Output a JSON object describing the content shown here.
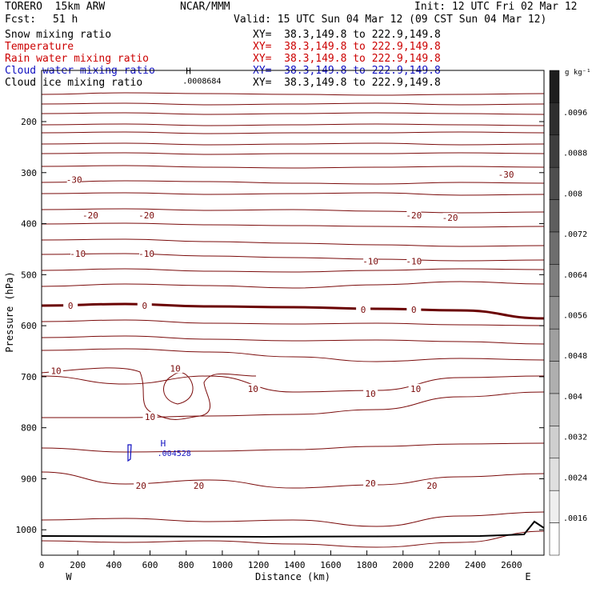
{
  "header": {
    "model": "TORERO  15km ARW",
    "center": "NCAR/MMM",
    "init": "Init: 12 UTC Fri 02 Mar 12",
    "fcst_label": "Fcst:",
    "fcst_value": "51 h",
    "valid": "Valid: 15 UTC Sun 04 Mar 12 (09 CST Sun 04 Mar 12)"
  },
  "legend": [
    {
      "field": "Snow mixing ratio",
      "xy": "XY=  38.3,149.8 to 222.9,149.8",
      "color": "#000000"
    },
    {
      "field": "Temperature",
      "xy": "XY=  38.3,149.8 to 222.9,149.8",
      "color": "#cc0000"
    },
    {
      "field": "Rain water mixing ratio",
      "xy": "XY=  38.3,149.8 to 222.9,149.8",
      "color": "#cc0000"
    },
    {
      "field": "Cloud water mixing ratio",
      "xy": "XY=  38.3,149.8 to 222.9,149.8",
      "color": "#1010c0"
    },
    {
      "field": "Cloud ice mixing ratio",
      "xy": "XY=  38.3,149.8 to 222.9,149.8",
      "color": "#000000"
    }
  ],
  "chart_data": {
    "type": "contour",
    "xlabel": "Distance (km)",
    "ylabel": "Pressure (hPa)",
    "xlim": [
      0,
      2780
    ],
    "ylim": [
      1050,
      100
    ],
    "x_ticks": [
      "0",
      "200",
      "400",
      "600",
      "800",
      "1000",
      "1200",
      "1400",
      "1600",
      "1800",
      "2000",
      "2200",
      "2400",
      "2600"
    ],
    "y_ticks": [
      "200",
      "300",
      "400",
      "500",
      "600",
      "700",
      "800",
      "900",
      "1000"
    ],
    "x_end_labels": {
      "left": "W",
      "right": "E"
    },
    "temperature_labels": [
      {
        "text": "-30",
        "x": 180,
        "p": 315
      },
      {
        "text": "-30",
        "x": 2570,
        "p": 305
      },
      {
        "text": "-20",
        "x": 270,
        "p": 385
      },
      {
        "text": "-20",
        "x": 580,
        "p": 385
      },
      {
        "text": "-20",
        "x": 2060,
        "p": 385
      },
      {
        "text": "-20",
        "x": 2260,
        "p": 390
      },
      {
        "text": "-10",
        "x": 200,
        "p": 460
      },
      {
        "text": "-10",
        "x": 580,
        "p": 460
      },
      {
        "text": "-10",
        "x": 1820,
        "p": 475
      },
      {
        "text": "-10",
        "x": 2060,
        "p": 475
      },
      {
        "text": "0",
        "x": 160,
        "p": 562
      },
      {
        "text": "0",
        "x": 570,
        "p": 562
      },
      {
        "text": "0",
        "x": 1780,
        "p": 570
      },
      {
        "text": "0",
        "x": 2060,
        "p": 570
      },
      {
        "text": "10",
        "x": 80,
        "p": 690
      },
      {
        "text": "10",
        "x": 740,
        "p": 685
      },
      {
        "text": "10",
        "x": 1170,
        "p": 725
      },
      {
        "text": "10",
        "x": 1820,
        "p": 735
      },
      {
        "text": "10",
        "x": 2070,
        "p": 725
      },
      {
        "text": "10",
        "x": 600,
        "p": 780
      },
      {
        "text": "20",
        "x": 550,
        "p": 915
      },
      {
        "text": "20",
        "x": 870,
        "p": 915
      },
      {
        "text": "20",
        "x": 1820,
        "p": 910
      },
      {
        "text": "20",
        "x": 2160,
        "p": 915
      }
    ],
    "markers": [
      {
        "label": "H",
        "value": ".0008684",
        "x": 860,
        "p": 110,
        "color": "#000000"
      },
      {
        "label": "H",
        "value": ".004528",
        "x": 720,
        "p": 840,
        "color": "#1010c0"
      }
    ],
    "colorbar": {
      "unit": "g kg⁻¹",
      "ticks": [
        ".0096",
        ".0088",
        ".008",
        ".0072",
        ".0064",
        ".0056",
        ".0048",
        ".004",
        ".0032",
        ".0024",
        ".0016"
      ],
      "levels": 15
    }
  }
}
